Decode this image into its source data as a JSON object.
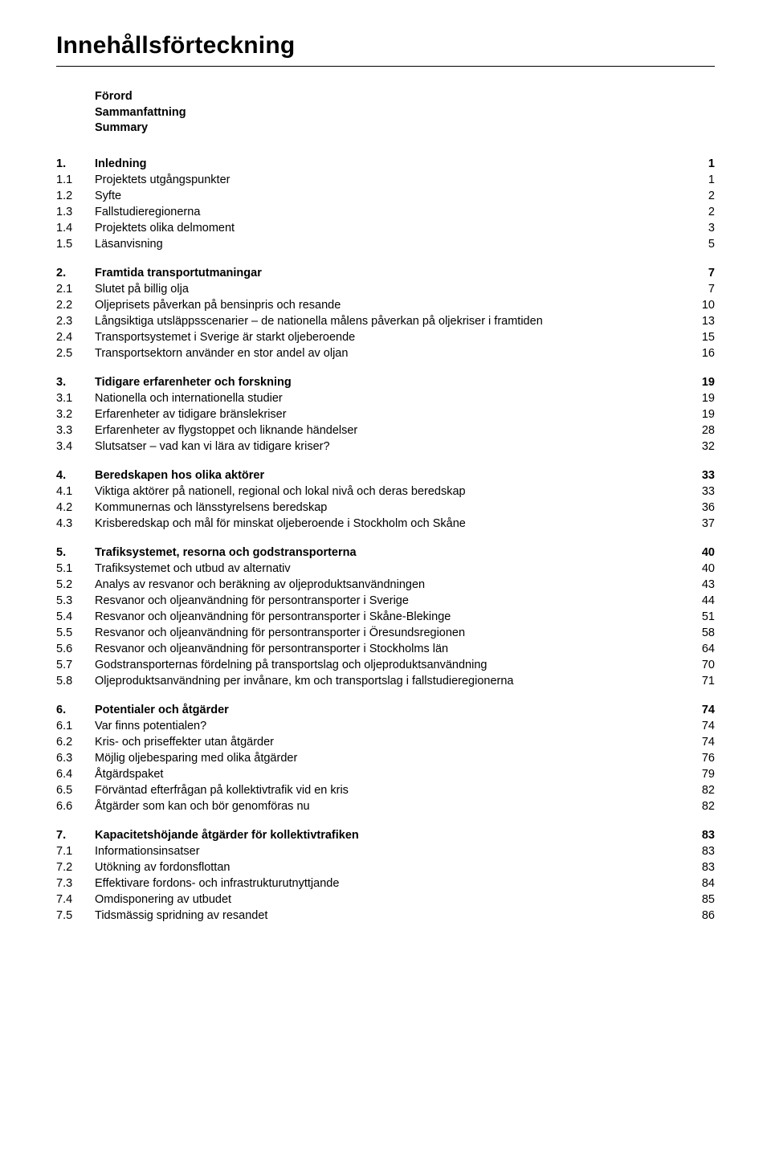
{
  "title": "Innehållsförteckning",
  "frontMatter": [
    "Förord",
    "Sammanfattning",
    "Summary"
  ],
  "sections": [
    {
      "num": "1.",
      "label": "Inledning",
      "page": "1",
      "items": [
        {
          "num": "1.1",
          "label": "Projektets utgångspunkter",
          "page": "1"
        },
        {
          "num": "1.2",
          "label": "Syfte",
          "page": "2"
        },
        {
          "num": "1.3",
          "label": "Fallstudieregionerna",
          "page": "2"
        },
        {
          "num": "1.4",
          "label": "Projektets olika delmoment",
          "page": "3"
        },
        {
          "num": "1.5",
          "label": "Läsanvisning",
          "page": "5"
        }
      ]
    },
    {
      "num": "2.",
      "label": "Framtida transportutmaningar",
      "page": "7",
      "items": [
        {
          "num": "2.1",
          "label": "Slutet på billig olja",
          "page": "7"
        },
        {
          "num": "2.2",
          "label": "Oljeprisets påverkan på bensinpris och resande",
          "page": "10"
        },
        {
          "num": "2.3",
          "label": "Långsiktiga utsläppsscenarier – de nationella målens påverkan på oljekriser i framtiden",
          "page": "13"
        },
        {
          "num": "2.4",
          "label": "Transportsystemet i Sverige är starkt oljeberoende",
          "page": "15"
        },
        {
          "num": "2.5",
          "label": "Transportsektorn använder en stor andel av oljan",
          "page": "16"
        }
      ]
    },
    {
      "num": "3.",
      "label": "Tidigare erfarenheter och forskning",
      "page": "19",
      "items": [
        {
          "num": "3.1",
          "label": "Nationella och internationella studier",
          "page": "19"
        },
        {
          "num": "3.2",
          "label": "Erfarenheter av tidigare bränslekriser",
          "page": "19"
        },
        {
          "num": "3.3",
          "label": "Erfarenheter av flygstoppet och liknande händelser",
          "page": "28"
        },
        {
          "num": "3.4",
          "label": "Slutsatser – vad kan vi lära av tidigare kriser?",
          "page": "32"
        }
      ]
    },
    {
      "num": "4.",
      "label": "Beredskapen hos olika aktörer",
      "page": "33",
      "items": [
        {
          "num": "4.1",
          "label": "Viktiga aktörer på nationell, regional och lokal nivå och deras beredskap",
          "page": "33"
        },
        {
          "num": "4.2",
          "label": "Kommunernas och länsstyrelsens beredskap",
          "page": "36"
        },
        {
          "num": "4.3",
          "label": "Krisberedskap och mål för minskat oljeberoende i Stockholm och Skåne",
          "page": "37"
        }
      ]
    },
    {
      "num": "5.",
      "label": "Trafiksystemet, resorna och godstransporterna",
      "page": "40",
      "items": [
        {
          "num": "5.1",
          "label": "Trafiksystemet och utbud av alternativ",
          "page": "40"
        },
        {
          "num": "5.2",
          "label": "Analys av resvanor och beräkning av oljeproduktsanvändningen",
          "page": "43"
        },
        {
          "num": "5.3",
          "label": "Resvanor och oljeanvändning för persontransporter i Sverige",
          "page": "44"
        },
        {
          "num": "5.4",
          "label": "Resvanor och oljeanvändning för persontransporter i Skåne-Blekinge",
          "page": "51"
        },
        {
          "num": "5.5",
          "label": "Resvanor och oljeanvändning för persontransporter i Öresundsregionen",
          "page": "58"
        },
        {
          "num": "5.6",
          "label": "Resvanor och oljeanvändning för persontransporter i Stockholms län",
          "page": "64"
        },
        {
          "num": "5.7",
          "label": "Godstransporternas fördelning på transportslag och oljeproduktsanvändning",
          "page": "70"
        },
        {
          "num": "5.8",
          "label": "Oljeproduktsanvändning per invånare, km och transportslag i fallstudieregionerna",
          "page": "71"
        }
      ]
    },
    {
      "num": "6.",
      "label": "Potentialer och åtgärder",
      "page": "74",
      "items": [
        {
          "num": "6.1",
          "label": "Var finns potentialen?",
          "page": "74"
        },
        {
          "num": "6.2",
          "label": "Kris- och priseffekter utan åtgärder",
          "page": "74"
        },
        {
          "num": "6.3",
          "label": "Möjlig oljebesparing med olika åtgärder",
          "page": "76"
        },
        {
          "num": "6.4",
          "label": "Åtgärdspaket",
          "page": "79"
        },
        {
          "num": "6.5",
          "label": "Förväntad efterfrågan på kollektivtrafik vid en kris",
          "page": "82"
        },
        {
          "num": "6.6",
          "label": "Åtgärder som kan och bör genomföras nu",
          "page": "82"
        }
      ]
    },
    {
      "num": "7.",
      "label": "Kapacitetshöjande åtgärder för kollektivtrafiken",
      "page": "83",
      "items": [
        {
          "num": "7.1",
          "label": "Informationsinsatser",
          "page": "83"
        },
        {
          "num": "7.2",
          "label": "Utökning av fordonsflottan",
          "page": "83"
        },
        {
          "num": "7.3",
          "label": "Effektivare fordons- och infrastrukturutnyttjande",
          "page": "84"
        },
        {
          "num": "7.4",
          "label": "Omdisponering av utbudet",
          "page": "85"
        },
        {
          "num": "7.5",
          "label": "Tidsmässig spridning av resandet",
          "page": "86"
        }
      ]
    }
  ]
}
